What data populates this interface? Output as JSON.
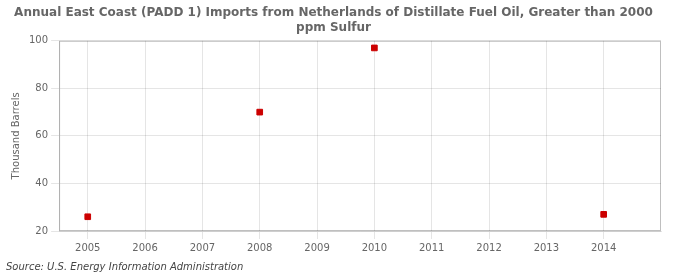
{
  "chart_data": {
    "type": "scatter",
    "title": "Annual East Coast (PADD 1) Imports from Netherlands of Distillate Fuel Oil, Greater than 2000\nppm Sulfur",
    "ylabel": "Thousand Barrels",
    "annotations": [
      "Source: U.S. Energy Information Administration"
    ],
    "x": [
      2005,
      2008,
      2010,
      2014
    ],
    "series": [
      {
        "values": [
          26,
          70,
          97,
          27
        ],
        "color": "#cc0000",
        "marker": "square"
      }
    ],
    "xlim": [
      2004.5,
      2015.0
    ],
    "ylim": [
      20,
      100
    ],
    "xticks": [
      2005,
      2006,
      2007,
      2008,
      2009,
      2010,
      2011,
      2012,
      2013,
      2014
    ],
    "yticks": [
      20,
      40,
      60,
      80,
      100
    ],
    "grid": true
  }
}
